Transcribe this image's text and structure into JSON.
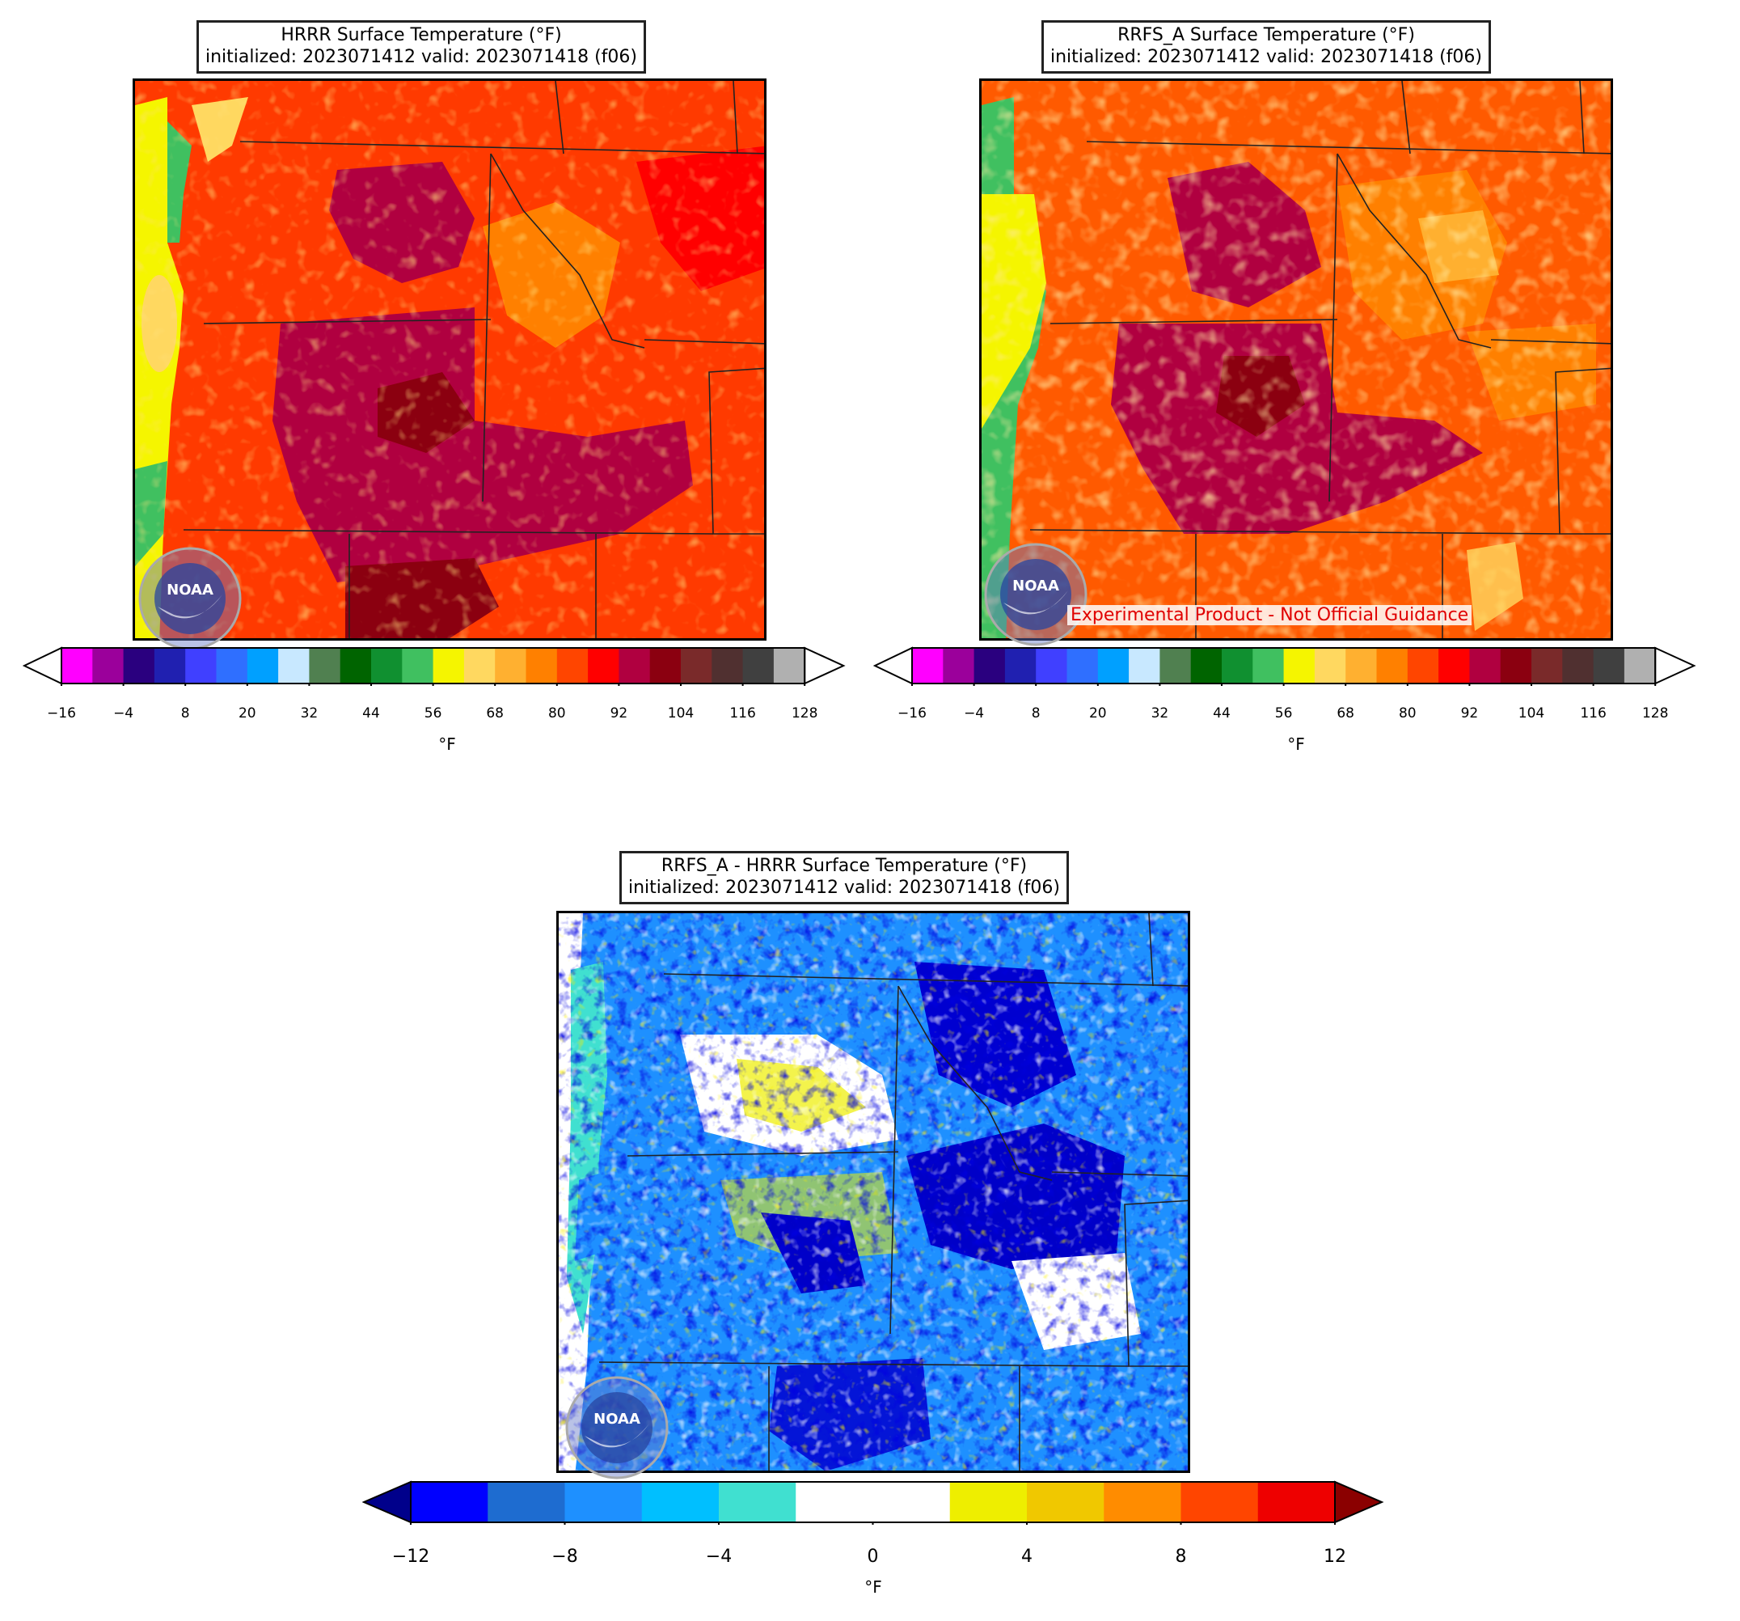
{
  "panels": [
    {
      "id": "hrrr",
      "title_line1": "HRRR Surface Temperature (°F)",
      "title_line2": "initialized: 2023071412 valid: 2023071418 (f06)",
      "unit": "°F",
      "ticks": [
        "−16",
        "−4",
        "8",
        "20",
        "32",
        "44",
        "56",
        "68",
        "80",
        "92",
        "104",
        "116",
        "128"
      ],
      "logo": "NOAA"
    },
    {
      "id": "rrfs",
      "title_line1": "RRFS_A Surface Temperature (°F)",
      "title_line2": "initialized: 2023071412 valid: 2023071418 (f06)",
      "unit": "°F",
      "ticks": [
        "−16",
        "−4",
        "8",
        "20",
        "32",
        "44",
        "56",
        "68",
        "80",
        "92",
        "104",
        "116",
        "128"
      ],
      "watermark": "Experimental Product - Not Official Guidance",
      "logo": "NOAA"
    },
    {
      "id": "diff",
      "title_line1": "RRFS_A - HRRR Surface Temperature (°F)",
      "title_line2": "initialized: 2023071412 valid: 2023071418 (f06)",
      "unit": "°F",
      "ticks": [
        "−12",
        "−8",
        "−4",
        "0",
        "4",
        "8",
        "12"
      ],
      "logo": "NOAA"
    }
  ],
  "temp_colormap": [
    "#ff00ff",
    "#9b009b",
    "#2a007f",
    "#2020b0",
    "#4040ff",
    "#2f6fff",
    "#00a0ff",
    "#c8e8ff",
    "#508050",
    "#006400",
    "#109030",
    "#40c060",
    "#f5f500",
    "#ffd860",
    "#ffb030",
    "#ff8000",
    "#ff4500",
    "#ff0000",
    "#b00040",
    "#8b0010",
    "#7a2a2a",
    "#503030",
    "#404040",
    "#b0b0b0"
  ],
  "diff_colormap": [
    "#0000ff",
    "#1e6cd0",
    "#1e90ff",
    "#00bfff",
    "#40e0d0",
    "#ffffff",
    "#ffffff",
    "#eeee00",
    "#f0c800",
    "#ff8c00",
    "#ff4500",
    "#ee0000"
  ],
  "diff_extend_low": "#00008b",
  "diff_extend_high": "#8b0000"
}
